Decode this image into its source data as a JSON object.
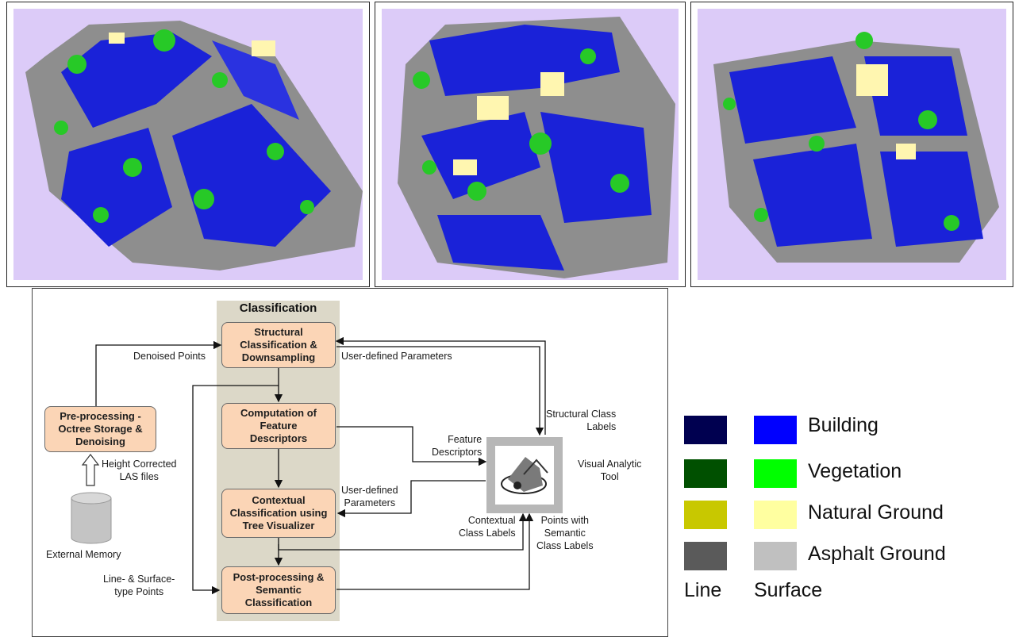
{
  "diagram": {
    "title": "Classification",
    "boxes": {
      "preprocessing": "Pre-processing -\nOctree Storage &\nDenoising",
      "structural": "Structural\nClassification &\nDownsampling",
      "features": "Computation of\nFeature\nDescriptors",
      "contextual": "Contextual\nClassification using\nTree Visualizer",
      "postprocessing": "Post-processing &\nSemantic\nClassification"
    },
    "labels": {
      "denoised_points": "Denoised Points",
      "height_corrected": "Height Corrected\nLAS files",
      "external_memory": "External Memory",
      "line_surface_points": "Line- & Surface-\ntype Points",
      "user_defined_params_1": "User-defined Parameters",
      "user_defined_params_2": "User-defined\nParameters",
      "structural_class_labels": "Structural Class\nLabels",
      "feature_descriptors": "Feature\nDescriptors",
      "visual_analytic_tool": "Visual Analytic\nTool",
      "contextual_class_labels": "Contextual\nClass Labels",
      "points_semantic": "Points with\nSemantic\nClass Labels"
    }
  },
  "legend": {
    "items": [
      {
        "label": "Building",
        "line_color": "#000050",
        "surface_color": "#0000ff"
      },
      {
        "label": "Vegetation",
        "line_color": "#005000",
        "surface_color": "#00ff00"
      },
      {
        "label": "Natural Ground",
        "line_color": "#c8c800",
        "surface_color": "#ffffa0"
      },
      {
        "label": "Asphalt Ground",
        "line_color": "#5a5a5a",
        "surface_color": "#c0c0c0"
      }
    ],
    "column_line": "Line",
    "column_surface": "Surface"
  },
  "colors": {
    "panel_background": "#dccbf8",
    "box_fill": "#fbd5b6",
    "classification_band": "#dcd8c8"
  }
}
